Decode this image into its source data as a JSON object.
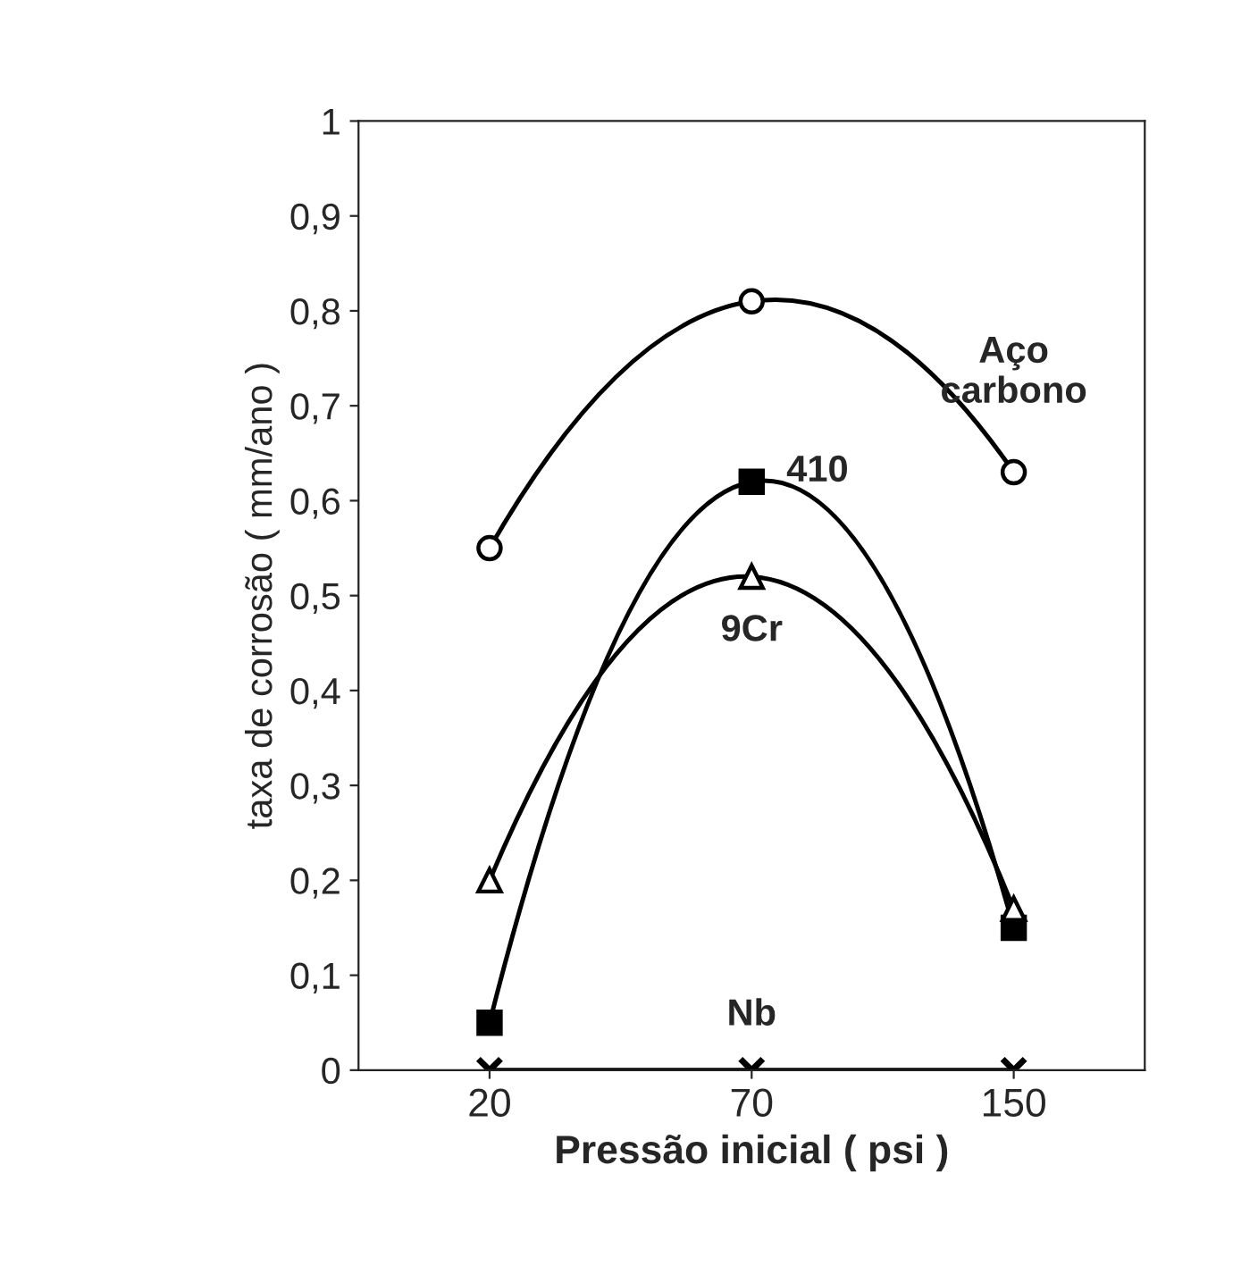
{
  "chart_data": {
    "type": "line",
    "xlabel": "Pressão inicial ( psi )",
    "ylabel": "taxa de corrosão ( mm/ano )",
    "categories": [
      "20",
      "70",
      "150"
    ],
    "series": [
      {
        "name": "410",
        "color": "#000000",
        "marker": "square",
        "values": [
          0.05,
          0.62,
          0.15
        ]
      },
      {
        "name": "9Cr",
        "color": "#000000",
        "marker": "triangle",
        "values": [
          0.2,
          0.52,
          0.17
        ]
      },
      {
        "name": "Aço\ncarbono",
        "color": "#000000",
        "marker": "circle",
        "values": [
          0.55,
          0.81,
          0.63
        ]
      },
      {
        "name": "Nb",
        "color": "#000000",
        "marker": "cross",
        "values": [
          0,
          0,
          0
        ]
      }
    ],
    "ylim": [
      0,
      1
    ],
    "yticks": [
      {
        "value": 0,
        "label": "0"
      },
      {
        "value": 0.1,
        "label": "0,1"
      },
      {
        "value": 0.2,
        "label": "0,2"
      },
      {
        "value": 0.3,
        "label": "0,3"
      },
      {
        "value": 0.4,
        "label": "0,4"
      },
      {
        "value": 0.5,
        "label": "0,5"
      },
      {
        "value": 0.6,
        "label": "0,6"
      },
      {
        "value": 0.7,
        "label": "0,7"
      },
      {
        "value": 0.8,
        "label": "0,8"
      },
      {
        "value": 0.9,
        "label": "0,9"
      },
      {
        "value": 1,
        "label": "1"
      }
    ],
    "grid": false,
    "legend": false
  }
}
